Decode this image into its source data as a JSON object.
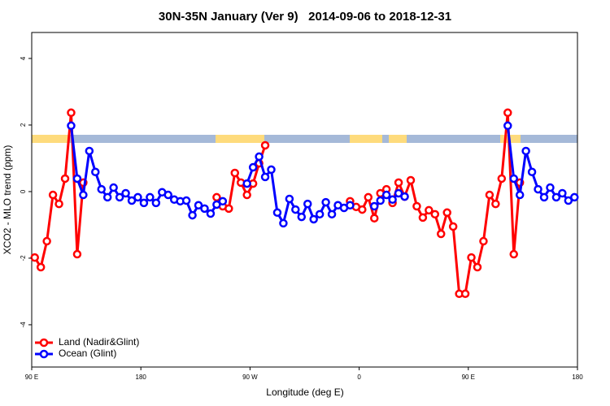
{
  "chart_data": {
    "type": "line",
    "title": "30N-35N January (Ver 9)   2014-09-06 to 2018-12-31",
    "x_label": "Longitude (deg E)",
    "y_label": "XCO2 - MLO trend (ppm)",
    "x": [
      92.5,
      97.5,
      102.5,
      107.5,
      112.5,
      117.5,
      122.5,
      127.5,
      132.5,
      137.5,
      142.5,
      147.5,
      152.5,
      157.5,
      162.5,
      167.5,
      172.5,
      177.5,
      182.5,
      187.5,
      192.5,
      197.5,
      202.5,
      207.5,
      212.5,
      217.5,
      222.5,
      227.5,
      232.5,
      237.5,
      242.5,
      247.5,
      252.5,
      257.5,
      262.5,
      267.5,
      272.5,
      277.5,
      282.5,
      287.5,
      292.5,
      297.5,
      302.5,
      307.5,
      312.5,
      317.5,
      322.5,
      327.5,
      332.5,
      337.5,
      342.5,
      347.5,
      352.5,
      357.5,
      362.5,
      367.5,
      372.5,
      377.5,
      382.5,
      387.5,
      392.5,
      397.5,
      402.5,
      407.5,
      412.5,
      417.5,
      422.5,
      427.5,
      432.5,
      437.5,
      442.5,
      447.5,
      452.5,
      457.5,
      462.5,
      467.5,
      472.5,
      477.5,
      482.5,
      487.5,
      492.5,
      497.5,
      502.5,
      507.5,
      512.5,
      517.5,
      522.5,
      527.5,
      532.5,
      537.5
    ],
    "series": [
      {
        "name": "Land (Nadir&Glint)",
        "color": "#ff0000",
        "values": [
          -1.98,
          -2.27,
          -1.49,
          -0.1,
          -0.37,
          0.39,
          2.37,
          -1.88,
          0.27,
          null,
          null,
          null,
          null,
          null,
          null,
          null,
          null,
          null,
          null,
          null,
          null,
          null,
          null,
          null,
          null,
          null,
          null,
          null,
          null,
          null,
          -0.17,
          -0.44,
          -0.51,
          0.56,
          0.27,
          -0.1,
          0.24,
          0.85,
          1.39,
          null,
          null,
          null,
          null,
          null,
          null,
          null,
          null,
          null,
          null,
          null,
          null,
          null,
          -0.29,
          -0.46,
          -0.54,
          -0.17,
          -0.8,
          -0.05,
          0.07,
          -0.34,
          0.27,
          -0.15,
          0.34,
          -0.44,
          -0.78,
          -0.56,
          -0.68,
          -1.27,
          -0.63,
          -1.05,
          -3.07,
          -3.07,
          -1.98,
          -2.27,
          -1.49,
          -0.1,
          -0.37,
          0.39,
          2.37,
          -1.88,
          0.27,
          null,
          null,
          null,
          null,
          null,
          null,
          null,
          null,
          null
        ]
      },
      {
        "name": "Ocean (Glint)",
        "color": "#0000ff",
        "values": [
          null,
          null,
          null,
          null,
          null,
          null,
          1.98,
          0.39,
          -0.1,
          1.22,
          0.59,
          0.07,
          -0.17,
          0.12,
          -0.17,
          -0.05,
          -0.27,
          -0.17,
          -0.34,
          -0.17,
          -0.34,
          -0.02,
          -0.1,
          -0.24,
          -0.29,
          -0.27,
          -0.71,
          -0.41,
          -0.51,
          -0.66,
          -0.39,
          -0.29,
          null,
          null,
          null,
          0.24,
          0.73,
          1.05,
          0.44,
          0.66,
          -0.63,
          -0.95,
          -0.22,
          -0.54,
          -0.76,
          -0.37,
          -0.83,
          -0.68,
          -0.32,
          -0.68,
          -0.41,
          -0.49,
          -0.41,
          null,
          null,
          null,
          -0.44,
          -0.27,
          -0.1,
          -0.24,
          -0.05,
          -0.15,
          null,
          null,
          null,
          null,
          null,
          null,
          null,
          null,
          null,
          null,
          null,
          null,
          null,
          null,
          null,
          null,
          1.98,
          0.39,
          -0.1,
          1.22,
          0.59,
          0.07,
          -0.17,
          0.12,
          -0.17,
          -0.05,
          -0.27,
          -0.17
        ]
      }
    ],
    "xlim": [
      90,
      540
    ],
    "xticks": [
      {
        "value": 90,
        "label": "90 E"
      },
      {
        "value": 180,
        "label": "180"
      },
      {
        "value": 270,
        "label": "90 W"
      },
      {
        "value": 360,
        "label": "0"
      },
      {
        "value": 450,
        "label": "90 E"
      },
      {
        "value": 540,
        "label": "180"
      }
    ],
    "ylim": [
      -5.27,
      4.78
    ],
    "yticks": [
      4,
      2,
      0,
      -2,
      -4
    ],
    "legend": "bottom-left",
    "grid": false
  }
}
